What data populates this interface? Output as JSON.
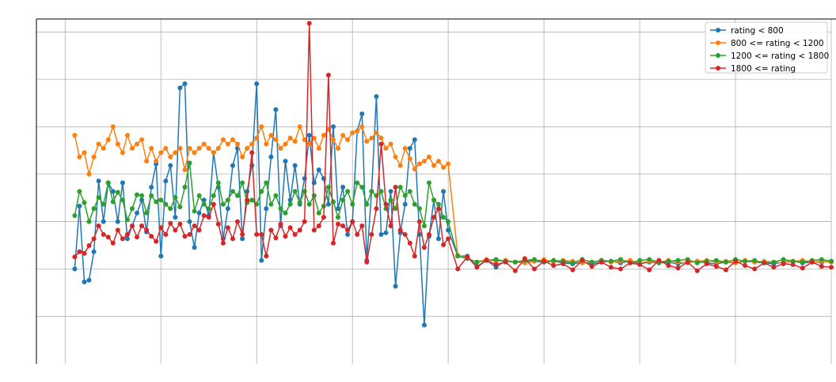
{
  "chart_data": {
    "type": "line",
    "title": "",
    "xlabel": "",
    "ylabel": "",
    "tick_labels_visible": false,
    "grid": true,
    "legend_placement": "top-right",
    "note": "Axis tick labels are not rendered in the image; values are estimated on a relative scale (x: 0-800 along the plotted range, y: 0-400 bottom-to-top of the plotting area).",
    "xlim": [
      -30,
      800
    ],
    "ylim": [
      0,
      400
    ],
    "x_gridlines": [
      0,
      100,
      200,
      300,
      400,
      500,
      600,
      700,
      800
    ],
    "y_gridlines": [
      55,
      110,
      165,
      220,
      275,
      330,
      385
    ],
    "series": [
      {
        "name": "rating < 800",
        "color": "#1f77b4",
        "x": [
          10,
          15,
          20,
          25,
          30,
          35,
          40,
          45,
          50,
          55,
          60,
          65,
          70,
          75,
          80,
          85,
          90,
          95,
          100,
          105,
          110,
          115,
          120,
          125,
          130,
          135,
          140,
          145,
          150,
          155,
          160,
          165,
          170,
          175,
          180,
          185,
          190,
          195,
          200,
          205,
          210,
          215,
          220,
          225,
          230,
          235,
          240,
          245,
          250,
          255,
          260,
          265,
          270,
          275,
          280,
          285,
          290,
          295,
          300,
          305,
          310,
          315,
          320,
          325,
          330,
          335,
          340,
          345,
          350,
          355,
          360,
          365,
          370,
          375,
          380,
          385,
          390,
          395,
          400,
          410,
          420,
          430,
          440,
          450,
          460,
          470,
          480,
          490,
          500,
          510,
          520,
          530,
          540,
          550,
          560,
          570,
          580,
          590,
          600,
          610,
          620,
          630,
          640,
          650,
          660,
          670,
          680,
          690,
          700,
          710,
          720,
          730,
          740,
          750,
          760,
          770,
          780,
          790,
          800
        ],
        "y": [
          110,
          183,
          95,
          97,
          130,
          212,
          165,
          210,
          200,
          165,
          210,
          145,
          160,
          175,
          190,
          153,
          205,
          232,
          125,
          212,
          230,
          170,
          320,
          325,
          165,
          135,
          175,
          190,
          172,
          245,
          205,
          145,
          180,
          230,
          250,
          145,
          200,
          230,
          325,
          120,
          180,
          240,
          295,
          160,
          235,
          190,
          230,
          185,
          215,
          265,
          210,
          225,
          215,
          185,
          275,
          180,
          205,
          150,
          165,
          270,
          290,
          120,
          200,
          310,
          150,
          152,
          200,
          90,
          152,
          185,
          250,
          260,
          150,
          45,
          148,
          190,
          145,
          200,
          155,
          125,
          125,
          113,
          120,
          112,
          120,
          118,
          120,
          119,
          118,
          119,
          117,
          116,
          118,
          116,
          118,
          119,
          117,
          119,
          116,
          118,
          117,
          118,
          116,
          118,
          119,
          117,
          116,
          118,
          117,
          119,
          118,
          117,
          116,
          118,
          119,
          117,
          118,
          118,
          119
        ]
      },
      {
        "name": "800 <= rating < 1200",
        "color": "#ff7f0e",
        "x": [
          10,
          15,
          20,
          25,
          30,
          35,
          40,
          45,
          50,
          55,
          60,
          65,
          70,
          75,
          80,
          85,
          90,
          95,
          100,
          105,
          110,
          115,
          120,
          125,
          130,
          135,
          140,
          145,
          150,
          155,
          160,
          165,
          170,
          175,
          180,
          185,
          190,
          195,
          200,
          205,
          210,
          215,
          220,
          225,
          230,
          235,
          240,
          245,
          250,
          255,
          260,
          265,
          270,
          275,
          280,
          285,
          290,
          295,
          300,
          305,
          310,
          315,
          320,
          325,
          330,
          335,
          340,
          345,
          350,
          355,
          360,
          365,
          370,
          375,
          380,
          385,
          390,
          395,
          400,
          410,
          420,
          430,
          440,
          450,
          460,
          470,
          480,
          490,
          500,
          510,
          520,
          530,
          540,
          550,
          560,
          570,
          580,
          590,
          600,
          610,
          620,
          630,
          640,
          650,
          660,
          670,
          680,
          690,
          700,
          710,
          720,
          730,
          740,
          750,
          760,
          770,
          780,
          790,
          800
        ],
        "y": [
          265,
          240,
          245,
          220,
          240,
          255,
          250,
          260,
          275,
          255,
          245,
          265,
          250,
          255,
          260,
          235,
          250,
          235,
          245,
          250,
          240,
          245,
          250,
          225,
          250,
          245,
          250,
          255,
          250,
          245,
          250,
          260,
          255,
          260,
          255,
          240,
          250,
          255,
          262,
          275,
          255,
          265,
          260,
          250,
          255,
          262,
          258,
          275,
          260,
          255,
          262,
          250,
          265,
          272,
          260,
          250,
          265,
          260,
          268,
          270,
          275,
          258,
          262,
          268,
          262,
          250,
          255,
          240,
          230,
          250,
          238,
          226,
          232,
          235,
          240,
          230,
          235,
          228,
          232,
          126,
          122,
          118,
          121,
          119,
          120,
          118,
          117,
          119,
          121,
          118,
          120,
          119,
          117,
          118,
          120,
          118,
          119,
          120,
          117,
          119,
          118,
          120,
          118,
          117,
          119,
          120,
          118,
          119,
          117,
          120,
          118,
          119,
          118,
          117,
          119,
          120,
          118,
          119,
          118
        ]
      },
      {
        "name": "1200 <= rating < 1800",
        "color": "#2ca02c",
        "x": [
          10,
          15,
          20,
          25,
          30,
          35,
          40,
          45,
          50,
          55,
          60,
          65,
          70,
          75,
          80,
          85,
          90,
          95,
          100,
          105,
          110,
          115,
          120,
          125,
          130,
          135,
          140,
          145,
          150,
          155,
          160,
          165,
          170,
          175,
          180,
          185,
          190,
          195,
          200,
          205,
          210,
          215,
          220,
          225,
          230,
          235,
          240,
          245,
          250,
          255,
          260,
          265,
          270,
          275,
          280,
          285,
          290,
          295,
          300,
          305,
          310,
          315,
          320,
          325,
          330,
          335,
          340,
          345,
          350,
          355,
          360,
          365,
          370,
          375,
          380,
          385,
          390,
          395,
          400,
          410,
          420,
          430,
          440,
          450,
          460,
          470,
          480,
          490,
          500,
          510,
          520,
          530,
          540,
          550,
          560,
          570,
          580,
          590,
          600,
          610,
          620,
          630,
          640,
          650,
          660,
          670,
          680,
          690,
          700,
          710,
          720,
          730,
          740,
          750,
          760,
          770,
          780,
          790,
          800
        ],
        "y": [
          172,
          200,
          187,
          165,
          180,
          193,
          185,
          210,
          188,
          199,
          190,
          167,
          180,
          196,
          195,
          175,
          195,
          188,
          190,
          185,
          180,
          193,
          182,
          205,
          233,
          177,
          195,
          185,
          180,
          195,
          210,
          185,
          190,
          200,
          195,
          210,
          187,
          190,
          185,
          200,
          210,
          185,
          195,
          180,
          175,
          185,
          200,
          187,
          200,
          185,
          195,
          175,
          183,
          205,
          188,
          170,
          190,
          200,
          185,
          210,
          205,
          185,
          200,
          195,
          200,
          180,
          190,
          180,
          205,
          195,
          200,
          185,
          180,
          160,
          210,
          190,
          185,
          170,
          165,
          125,
          122,
          118,
          120,
          121,
          119,
          118,
          120,
          121,
          118,
          120,
          119,
          117,
          121,
          118,
          120,
          119,
          121,
          117,
          120,
          121,
          118,
          119,
          120,
          121,
          117,
          119,
          120,
          118,
          121,
          119,
          120,
          117,
          118,
          121,
          119,
          118,
          120,
          121,
          119
        ]
      },
      {
        "name": "1800 <= rating",
        "color": "#d62728",
        "x": [
          10,
          15,
          20,
          25,
          30,
          35,
          40,
          45,
          50,
          55,
          60,
          65,
          70,
          75,
          80,
          85,
          90,
          95,
          100,
          105,
          110,
          115,
          120,
          125,
          130,
          135,
          140,
          145,
          150,
          155,
          160,
          165,
          170,
          175,
          180,
          185,
          190,
          195,
          200,
          205,
          210,
          215,
          220,
          225,
          230,
          235,
          240,
          245,
          250,
          255,
          260,
          265,
          270,
          275,
          280,
          285,
          290,
          295,
          300,
          305,
          310,
          315,
          320,
          325,
          330,
          335,
          340,
          345,
          350,
          355,
          360,
          365,
          370,
          375,
          380,
          385,
          390,
          395,
          400,
          410,
          420,
          430,
          440,
          450,
          460,
          470,
          480,
          490,
          500,
          510,
          520,
          530,
          540,
          550,
          560,
          570,
          580,
          590,
          600,
          610,
          620,
          630,
          640,
          650,
          660,
          670,
          680,
          690,
          700,
          710,
          720,
          730,
          740,
          750,
          760,
          770,
          780,
          790,
          800
        ],
        "y": [
          124,
          130,
          128,
          137,
          145,
          160,
          150,
          147,
          140,
          155,
          145,
          150,
          160,
          147,
          160,
          155,
          148,
          142,
          158,
          150,
          163,
          155,
          162,
          148,
          150,
          160,
          155,
          172,
          170,
          185,
          162,
          140,
          158,
          145,
          165,
          150,
          190,
          245,
          150,
          150,
          125,
          155,
          146,
          162,
          148,
          158,
          150,
          155,
          165,
          395,
          155,
          160,
          170,
          335,
          140,
          162,
          160,
          155,
          165,
          150,
          160,
          118,
          150,
          180,
          255,
          185,
          160,
          205,
          155,
          150,
          140,
          125,
          165,
          135,
          150,
          170,
          180,
          138,
          145,
          110,
          124,
          112,
          120,
          115,
          118,
          108,
          122,
          110,
          119,
          114,
          116,
          109,
          120,
          113,
          118,
          112,
          110,
          117,
          115,
          109,
          120,
          114,
          111,
          118,
          108,
          116,
          113,
          109,
          119,
          114,
          110,
          117,
          112,
          116,
          115,
          111,
          118,
          113,
          112
        ]
      }
    ]
  }
}
